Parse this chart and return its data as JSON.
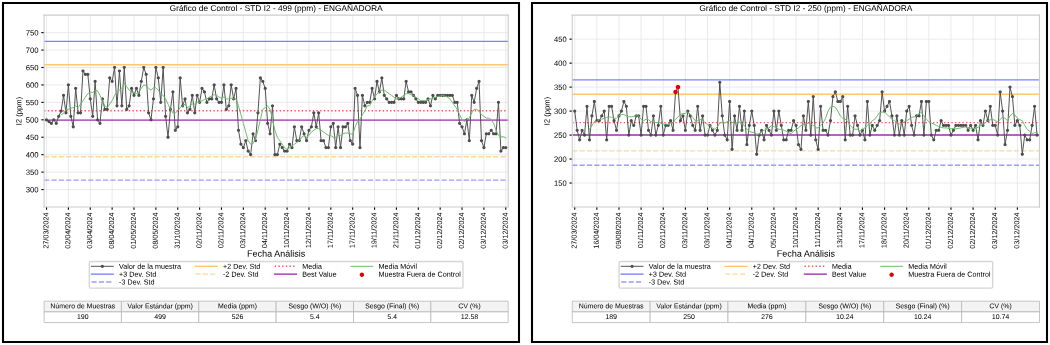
{
  "chart_data": [
    {
      "type": "line",
      "title": "Gráfico de Control - STD I2 - 499 (ppm) - ENGAÑADORA",
      "xlabel": "Fecha Análisis",
      "ylabel": "I2 (ppm)",
      "categories": [
        "27/03/2024",
        null,
        null,
        null,
        null,
        null,
        null,
        null,
        null,
        "02/04/2024",
        null,
        null,
        null,
        null,
        null,
        null,
        null,
        null,
        "03/04/2024",
        null,
        null,
        null,
        null,
        null,
        null,
        null,
        null,
        "08/04/2024",
        null,
        null,
        null,
        null,
        null,
        null,
        null,
        null,
        "01/05/2024",
        null,
        null,
        null,
        null,
        null,
        null,
        null,
        null,
        "08/05/2024",
        null,
        null,
        null,
        null,
        null,
        null,
        null,
        null,
        "31/10/2024",
        null,
        null,
        null,
        null,
        null,
        null,
        null,
        null,
        "02/11/2024",
        null,
        null,
        null,
        null,
        null,
        null,
        null,
        null,
        "02/11/2024",
        null,
        null,
        null,
        null,
        null,
        null,
        null,
        null,
        "03/11/2024",
        null,
        null,
        null,
        null,
        null,
        null,
        null,
        null,
        "04/11/2024",
        null,
        null,
        null,
        null,
        null,
        null,
        null,
        null,
        "10/11/2024",
        null,
        null,
        null,
        null,
        null,
        null,
        null,
        null,
        "12/11/2024",
        null,
        null,
        null,
        null,
        null,
        null,
        null,
        null,
        "17/11/2024",
        null,
        null,
        null,
        null,
        null,
        null,
        null,
        null,
        "17/11/2024",
        null,
        null,
        null,
        null,
        null,
        null,
        null,
        null,
        "19/11/2024",
        null,
        null,
        null,
        null,
        null,
        null,
        null,
        null,
        "21/11/2024",
        null,
        null,
        null,
        null,
        null,
        null,
        null,
        null,
        "01/12/2024",
        null,
        null,
        null,
        null,
        null,
        null,
        null,
        null,
        "02/12/2024",
        null,
        null,
        null,
        null,
        null,
        null,
        null,
        null,
        "02/12/2024",
        null,
        null,
        null,
        null,
        null,
        null,
        null,
        null,
        "03/12/2024",
        null,
        null,
        null,
        null,
        null,
        null,
        null,
        null,
        "03/12/2024"
      ],
      "series": [
        {
          "name": "Valor de la muestra",
          "type": "line",
          "marker": "circle",
          "color": "#4d4d4d",
          "values": [
            500,
            495,
            490,
            500,
            490,
            510,
            525,
            570,
            520,
            600,
            510,
            480,
            590,
            520,
            520,
            640,
            630,
            630,
            560,
            510,
            610,
            500,
            490,
            560,
            530,
            530,
            620,
            610,
            650,
            540,
            640,
            540,
            650,
            530,
            540,
            590,
            570,
            590,
            570,
            610,
            650,
            630,
            520,
            500,
            560,
            650,
            620,
            550,
            650,
            510,
            450,
            530,
            580,
            470,
            480,
            620,
            540,
            560,
            520,
            530,
            570,
            520,
            570,
            550,
            590,
            580,
            550,
            560,
            560,
            600,
            560,
            550,
            550,
            600,
            530,
            540,
            600,
            560,
            590,
            470,
            430,
            420,
            440,
            410,
            400,
            460,
            440,
            520,
            620,
            610,
            590,
            490,
            460,
            540,
            400,
            400,
            430,
            420,
            410,
            410,
            430,
            420,
            480,
            440,
            440,
            480,
            460,
            440,
            470,
            480,
            520,
            480,
            520,
            440,
            440,
            420,
            420,
            480,
            490,
            420,
            480,
            420,
            480,
            480,
            490,
            440,
            430,
            590,
            570,
            420,
            570,
            540,
            550,
            550,
            590,
            560,
            610,
            580,
            620,
            570,
            560,
            550,
            550,
            550,
            570,
            560,
            560,
            560,
            610,
            580,
            580,
            570,
            560,
            550,
            550,
            550,
            550,
            560,
            540,
            570,
            560,
            570,
            570,
            570,
            570,
            570,
            570,
            570,
            550,
            550,
            490,
            480,
            460,
            500,
            440,
            570,
            550,
            590,
            610,
            440,
            420,
            460,
            460,
            470,
            460,
            460,
            550,
            410,
            420,
            420
          ]
        },
        {
          "name": "Media Móvil",
          "type": "line",
          "marker": "none",
          "color": "#66bb66",
          "values": [
            null,
            null,
            null,
            null,
            null,
            null,
            515,
            518,
            530,
            530,
            533,
            535,
            540,
            535,
            545,
            555,
            565,
            575,
            580,
            578,
            585,
            583,
            570,
            555,
            540,
            535,
            545,
            555,
            570,
            580,
            585,
            590,
            605,
            595,
            585,
            580,
            578,
            575,
            580,
            590,
            600,
            598,
            590,
            585,
            592,
            592,
            585,
            575,
            570,
            560,
            545,
            530,
            520,
            520,
            525,
            535,
            540,
            545,
            535,
            540,
            545,
            545,
            550,
            550,
            555,
            558,
            560,
            565,
            568,
            572,
            570,
            565,
            562,
            565,
            560,
            560,
            562,
            560,
            560,
            540,
            515,
            490,
            465,
            440,
            430,
            432,
            445,
            470,
            500,
            530,
            535,
            540,
            530,
            500,
            470,
            450,
            440,
            430,
            420,
            415,
            420,
            425,
            430,
            435,
            440,
            450,
            455,
            450,
            455,
            465,
            470,
            475,
            475,
            470,
            465,
            460,
            455,
            455,
            450,
            450,
            455,
            455,
            460,
            462,
            462,
            460,
            458,
            480,
            495,
            500,
            515,
            525,
            540,
            540,
            555,
            565,
            575,
            580,
            585,
            585,
            580,
            575,
            570,
            565,
            560,
            560,
            565,
            570,
            575,
            575,
            572,
            570,
            565,
            560,
            555,
            555,
            555,
            558,
            560,
            562,
            565,
            567,
            568,
            570,
            568,
            565,
            560,
            550,
            540,
            530,
            515,
            500,
            495,
            500,
            505,
            520,
            530,
            530,
            525,
            515,
            510,
            505,
            505,
            500,
            490,
            470,
            455,
            450,
            452,
            448
          ]
        },
        {
          "name": "Muestra Fuera de Control",
          "type": "scatter",
          "color": "#e00000",
          "values": [
            null,
            null,
            null,
            null,
            null,
            null,
            null,
            null,
            null,
            null,
            null,
            null,
            null,
            null,
            null,
            null,
            null,
            null,
            null,
            null,
            null,
            null,
            null,
            null,
            null,
            null,
            null,
            null,
            null,
            null,
            null,
            null,
            null,
            null,
            null,
            null,
            null,
            null,
            null,
            null,
            null,
            null,
            null,
            null,
            null,
            null,
            null,
            null,
            null,
            null,
            null,
            null,
            null,
            null,
            null,
            null,
            null,
            null,
            null,
            null,
            null,
            null,
            null,
            null,
            null,
            null,
            null,
            null,
            null,
            null,
            null,
            null,
            null,
            null,
            null,
            null,
            null,
            null,
            null,
            null,
            null,
            null,
            null,
            null,
            null,
            null,
            null,
            null,
            null,
            null,
            null,
            null,
            null,
            null,
            null,
            null,
            null,
            null,
            null,
            null,
            null,
            null,
            null,
            null,
            null,
            null,
            null,
            null,
            null,
            null,
            null,
            null,
            null,
            null,
            null,
            null,
            null,
            null,
            null,
            null,
            null,
            null,
            null,
            null,
            null,
            null,
            null,
            null,
            null,
            null,
            null,
            null,
            null,
            null,
            null,
            null,
            null,
            null,
            null,
            null,
            null,
            null,
            null,
            null,
            null,
            null,
            null,
            null,
            null,
            null,
            null,
            null,
            null,
            null,
            null,
            null,
            null,
            null,
            null,
            null,
            null,
            null,
            null,
            null,
            null,
            null,
            null,
            null,
            null,
            null,
            null,
            null,
            null,
            null,
            null,
            null,
            null,
            null,
            null,
            null,
            null,
            null,
            null,
            null,
            null,
            null,
            null,
            null,
            null,
            null
          ]
        }
      ],
      "ref_lines": [
        {
          "axis": "y",
          "value": 725,
          "label": "+3 Dev. Std",
          "color": "#8080ff",
          "line_style": "solid"
        },
        {
          "axis": "y",
          "value": 327,
          "label": "-3 Dev. Std",
          "color": "#9a9aff",
          "line_style": "dashed"
        },
        {
          "axis": "y",
          "value": 658,
          "label": "+2 Dev. Std",
          "color": "#ffc870",
          "line_style": "solid"
        },
        {
          "axis": "y",
          "value": 394,
          "label": "-2 Dev. Std",
          "color": "#ffd699",
          "line_style": "dashed"
        },
        {
          "axis": "y",
          "value": 526,
          "label": "Media",
          "color": "#ff5050",
          "line_style": "dotted"
        },
        {
          "axis": "y",
          "value": 499,
          "label": "Best Value",
          "color": "#a030b0",
          "line_style": "solid"
        }
      ],
      "ylim": [
        250,
        800
      ],
      "yticks": [
        300,
        350,
        400,
        450,
        500,
        550,
        600,
        650,
        700,
        750
      ],
      "grid": true,
      "legend": "bottom"
    },
    {
      "type": "other",
      "categories": [
        "Número de Muestras",
        "Valor Estándar (ppm)",
        "Media (ppm)",
        "Sesgo (W/O) (%)",
        "Sesgo (Final) (%)",
        "CV (%)"
      ],
      "values": [
        190,
        499,
        526,
        5.4,
        5.4,
        12.58
      ],
      "data_labels": true
    },
    {
      "type": "line",
      "title": "Gráfico de Control - STD I2 - 250 (ppm) - ENGAÑADORA",
      "xlabel": "Fecha Análisis",
      "ylabel": "I2 (ppm)",
      "categories": [
        "27/03/2024",
        null,
        null,
        null,
        null,
        null,
        null,
        null,
        null,
        "16/04/2024",
        null,
        null,
        null,
        null,
        null,
        null,
        null,
        null,
        "09/08/2024",
        null,
        null,
        null,
        null,
        null,
        null,
        null,
        null,
        "01/11/2024",
        null,
        null,
        null,
        null,
        null,
        null,
        null,
        null,
        "02/11/2024",
        null,
        null,
        null,
        null,
        null,
        null,
        null,
        null,
        "03/11/2024",
        null,
        null,
        null,
        null,
        null,
        null,
        null,
        null,
        "03/11/2024",
        null,
        null,
        null,
        null,
        null,
        null,
        null,
        null,
        "04/11/2024",
        null,
        null,
        null,
        null,
        null,
        null,
        null,
        null,
        "04/11/2024",
        null,
        null,
        null,
        null,
        null,
        null,
        null,
        null,
        "05/11/2024",
        null,
        null,
        null,
        null,
        null,
        null,
        null,
        null,
        "10/11/2024",
        null,
        null,
        null,
        null,
        null,
        null,
        null,
        null,
        "11/11/2024",
        null,
        null,
        null,
        null,
        null,
        null,
        null,
        null,
        "13/11/2024",
        null,
        null,
        null,
        null,
        null,
        null,
        null,
        null,
        "17/11/2024",
        null,
        null,
        null,
        null,
        null,
        null,
        null,
        null,
        "18/11/2024",
        null,
        null,
        null,
        null,
        null,
        null,
        null,
        null,
        "20/11/2024",
        null,
        null,
        null,
        null,
        null,
        null,
        null,
        null,
        "01/12/2024",
        null,
        null,
        null,
        null,
        null,
        null,
        null,
        null,
        "02/12/2024",
        null,
        null,
        null,
        null,
        null,
        null,
        null,
        null,
        "02/12/2024",
        null,
        null,
        null,
        null,
        null,
        null,
        null,
        null,
        "03/12/2024",
        null,
        null,
        null,
        null,
        null,
        null,
        null,
        null,
        "03/12/2024",
        null,
        null,
        null,
        null,
        null,
        null,
        null,
        null
      ],
      "series": [
        {
          "name": "Valor de la muestra",
          "type": "line",
          "marker": "circle",
          "color": "#4d4d4d",
          "values": [
            300,
            260,
            240,
            260,
            250,
            310,
            240,
            290,
            320,
            280,
            280,
            290,
            300,
            240,
            310,
            310,
            280,
            260,
            290,
            300,
            320,
            310,
            250,
            280,
            270,
            290,
            290,
            250,
            310,
            310,
            260,
            250,
            290,
            250,
            270,
            310,
            250,
            270,
            270,
            280,
            260,
            340,
            350,
            280,
            290,
            260,
            300,
            290,
            270,
            260,
            310,
            260,
            290,
            250,
            250,
            270,
            260,
            250,
            260,
            360,
            290,
            250,
            240,
            320,
            220,
            290,
            260,
            310,
            260,
            300,
            230,
            270,
            300,
            270,
            210,
            250,
            260,
            240,
            270,
            260,
            250,
            300,
            260,
            300,
            270,
            240,
            240,
            260,
            260,
            280,
            270,
            230,
            220,
            290,
            260,
            320,
            250,
            330,
            240,
            220,
            310,
            260,
            260,
            250,
            280,
            330,
            340,
            320,
            320,
            330,
            240,
            310,
            250,
            250,
            290,
            270,
            250,
            260,
            240,
            320,
            250,
            270,
            260,
            270,
            280,
            340,
            300,
            310,
            320,
            290,
            250,
            290,
            250,
            280,
            250,
            300,
            310,
            270,
            250,
            290,
            290,
            320,
            250,
            320,
            320,
            250,
            240,
            260,
            260,
            280,
            270,
            270,
            270,
            250,
            260,
            270,
            270,
            270,
            270,
            270,
            260,
            270,
            260,
            270,
            240,
            280,
            270,
            300,
            280,
            310,
            270,
            270,
            250,
            340,
            300,
            230,
            260,
            350,
            330,
            270,
            280,
            270,
            210,
            250,
            240,
            240,
            270,
            310,
            250
          ]
        },
        {
          "name": "Media Móvil",
          "type": "line",
          "marker": "none",
          "color": "#66bb66",
          "values": [
            null,
            null,
            null,
            null,
            null,
            null,
            262,
            270,
            278,
            278,
            282,
            283,
            285,
            287,
            288,
            287,
            285,
            285,
            290,
            293,
            293,
            290,
            288,
            288,
            289,
            290,
            290,
            283,
            280,
            283,
            282,
            278,
            277,
            276,
            276,
            275,
            273,
            273,
            272,
            275,
            275,
            283,
            288,
            293,
            295,
            295,
            298,
            293,
            287,
            280,
            280,
            283,
            280,
            276,
            272,
            270,
            265,
            262,
            267,
            275,
            277,
            275,
            278,
            280,
            276,
            278,
            275,
            277,
            273,
            270,
            262,
            258,
            256,
            255,
            252,
            252,
            257,
            260,
            263,
            265,
            270,
            268,
            265,
            262,
            262,
            260,
            258,
            255,
            253,
            258,
            262,
            265,
            270,
            272,
            273,
            275,
            273,
            270,
            265,
            265,
            270,
            275,
            285,
            300,
            308,
            310,
            308,
            300,
            290,
            285,
            283,
            278,
            270,
            265,
            262,
            262,
            258,
            262,
            265,
            270,
            273,
            280,
            283,
            290,
            297,
            298,
            298,
            293,
            288,
            283,
            280,
            276,
            273,
            273,
            278,
            280,
            283,
            287,
            288,
            290,
            295,
            297,
            290,
            283,
            278,
            275,
            273,
            270,
            268,
            266,
            265,
            265,
            264,
            263,
            264,
            263,
            264,
            265,
            266,
            267,
            266,
            264,
            264,
            264,
            266,
            270,
            272,
            276,
            280,
            282,
            283,
            280,
            278,
            282,
            288,
            285,
            280,
            290,
            295,
            292,
            285,
            282,
            280,
            270,
            262,
            258,
            253,
            255,
            255
          ]
        },
        {
          "name": "Muestra Fuera de Control",
          "type": "scatter",
          "color": "#e00000",
          "values": [
            null,
            null,
            null,
            null,
            null,
            null,
            null,
            null,
            null,
            null,
            null,
            null,
            null,
            null,
            null,
            null,
            null,
            null,
            null,
            null,
            null,
            null,
            null,
            null,
            null,
            null,
            null,
            null,
            null,
            null,
            null,
            null,
            null,
            null,
            null,
            null,
            null,
            null,
            null,
            null,
            null,
            340,
            350,
            null,
            null,
            null,
            null,
            null,
            null,
            null,
            null,
            null,
            null,
            null,
            null,
            null,
            null,
            null,
            null,
            null,
            null,
            null,
            null,
            null,
            null,
            null,
            null,
            null,
            null,
            null,
            null,
            null,
            null,
            null,
            null,
            null,
            null,
            null,
            null,
            null,
            null,
            null,
            null,
            null,
            null,
            null,
            null,
            null,
            null,
            null,
            null,
            null,
            null,
            null,
            null,
            null,
            null,
            null,
            null,
            null,
            null,
            null,
            null,
            null,
            null,
            null,
            null,
            null,
            null,
            null,
            null,
            null,
            null,
            null,
            null,
            null,
            null,
            null,
            null,
            null,
            null,
            null,
            null,
            null,
            null,
            null,
            null,
            null,
            null,
            null,
            null,
            null,
            null,
            null,
            null,
            null,
            null,
            null,
            null,
            null,
            null,
            null,
            null,
            null,
            null,
            null,
            null,
            null,
            null,
            null,
            null,
            null,
            null,
            null,
            null,
            null,
            null,
            null,
            null,
            null,
            null,
            null,
            null,
            null,
            null,
            null,
            null,
            null,
            null,
            null,
            null,
            null,
            null,
            null,
            null,
            null,
            null,
            null,
            null,
            null,
            null,
            null,
            null,
            null,
            null,
            null,
            null,
            null,
            null
          ]
        }
      ],
      "ref_lines": [
        {
          "axis": "y",
          "value": 365,
          "label": "+3 Dev. Std",
          "color": "#8080ff",
          "line_style": "solid"
        },
        {
          "axis": "y",
          "value": 187,
          "label": "-3 Dev. Std",
          "color": "#9a9aff",
          "line_style": "dashed"
        },
        {
          "axis": "y",
          "value": 335,
          "label": "+2 Dev. Std",
          "color": "#ffc870",
          "line_style": "solid"
        },
        {
          "axis": "y",
          "value": 217,
          "label": "-2 Dev. Std",
          "color": "#ffd699",
          "line_style": "dashed"
        },
        {
          "axis": "y",
          "value": 276,
          "label": "Media",
          "color": "#ff5050",
          "line_style": "dotted"
        },
        {
          "axis": "y",
          "value": 250,
          "label": "Best Value",
          "color": "#a030b0",
          "line_style": "solid"
        }
      ],
      "ylim": [
        100,
        500
      ],
      "yticks": [
        150,
        200,
        250,
        300,
        350,
        400,
        450
      ],
      "grid": true,
      "legend": "bottom"
    },
    {
      "type": "other",
      "categories": [
        "Número de Muestras",
        "Valor Estándar (ppm)",
        "Media (ppm)",
        "Sesgo (W/O) (%)",
        "Sesgo (Final) (%)",
        "CV (%)"
      ],
      "values": [
        189,
        250,
        276,
        10.24,
        10.24,
        10.74
      ],
      "data_labels": true
    }
  ]
}
